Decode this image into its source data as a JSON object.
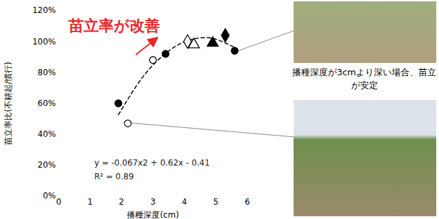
{
  "chart_data": {
    "type": "scatter",
    "xlabel": "播種深度(cm)",
    "ylabel": "苗立率比(不耕起/慣行)",
    "annotations": [
      {
        "text": "苗立率が改善",
        "color": "#e8262a"
      },
      {
        "text": "y = -0.067x2 + 0.62x - 0.41"
      },
      {
        "text": "R² = 0.89"
      },
      {
        "text": "播種深度が3cmより深い場合、苗立が安定"
      }
    ],
    "xlim": [
      0,
      6
    ],
    "xticks": [
      0,
      1,
      2,
      3,
      4,
      5,
      6
    ],
    "ylim": [
      0,
      120
    ],
    "yticks": [
      {
        "value": 0,
        "label": "0%"
      },
      {
        "value": 20,
        "label": "20%"
      },
      {
        "value": 40,
        "label": "40%"
      },
      {
        "value": 60,
        "label": "60%"
      },
      {
        "value": 80,
        "label": "80%"
      },
      {
        "value": 100,
        "label": "100%"
      },
      {
        "value": 120,
        "label": "120%"
      }
    ],
    "grid": false,
    "series": [
      {
        "type": "line",
        "line_style": "dashed",
        "color": "#000000",
        "x": [
          1.9,
          2.5,
          3.0,
          3.5,
          4.0,
          4.5,
          5.0,
          5.6
        ],
        "values": [
          52.6,
          72.1,
          84.7,
          93.9,
          99.8,
          102.3,
          101.5,
          96.1
        ]
      },
      {
        "type": "scatter",
        "marker": "circle",
        "color": "#000000",
        "x": [
          1.9,
          3.4,
          5.6
        ],
        "values": [
          60,
          92,
          94
        ]
      },
      {
        "type": "scatter",
        "marker": "open-circle",
        "color": "#000000",
        "x": [
          2.2,
          3.0
        ],
        "values": [
          47,
          88
        ]
      },
      {
        "type": "scatter",
        "marker": "open-diamond",
        "color": "#000000",
        "x": [
          4.1
        ],
        "values": [
          100
        ]
      },
      {
        "type": "scatter",
        "marker": "open-triangle",
        "color": "#000000",
        "x": [
          4.3
        ],
        "values": [
          98
        ]
      },
      {
        "type": "scatter",
        "marker": "triangle",
        "color": "#000000",
        "x": [
          4.9
        ],
        "values": [
          99
        ]
      },
      {
        "type": "scatter",
        "marker": "diamond",
        "color": "#000000",
        "x": [
          5.3
        ],
        "values": [
          104
        ]
      }
    ]
  }
}
